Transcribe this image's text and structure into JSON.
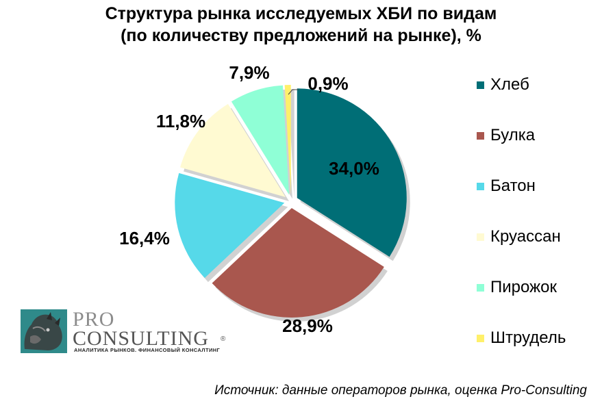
{
  "chart_data": {
    "type": "pie",
    "title": [
      "Структура рынка исследуемых ХБИ по видам",
      "(по количеству предложений на рынке), %"
    ],
    "slices": [
      {
        "name": "Хлеб",
        "value": 34.0,
        "label": "34,0%",
        "color": "#006e76"
      },
      {
        "name": "Булка",
        "value": 28.9,
        "label": "28,9%",
        "color": "#a9574e"
      },
      {
        "name": "Батон",
        "value": 16.4,
        "label": "16,4%",
        "color": "#56d9e9"
      },
      {
        "name": "Круассан",
        "value": 11.8,
        "label": "11,8%",
        "color": "#fffad2"
      },
      {
        "name": "Пирожок",
        "value": 7.9,
        "label": "7,9%",
        "color": "#8fffd6"
      },
      {
        "name": "Штрудель",
        "value": 0.9,
        "label": "0,9%",
        "color": "#fff06a"
      }
    ],
    "legend_position": "right"
  },
  "logo": {
    "line1": "PRO",
    "line2": "CONSULTING",
    "registered": "®",
    "tagline": "АНАЛИТИКА РЫНКОВ. ФИНАНСОВЫЙ КОНСАЛТИНГ"
  },
  "source": "Источник: данные операторов рынка, оценка Pro-Consulting"
}
